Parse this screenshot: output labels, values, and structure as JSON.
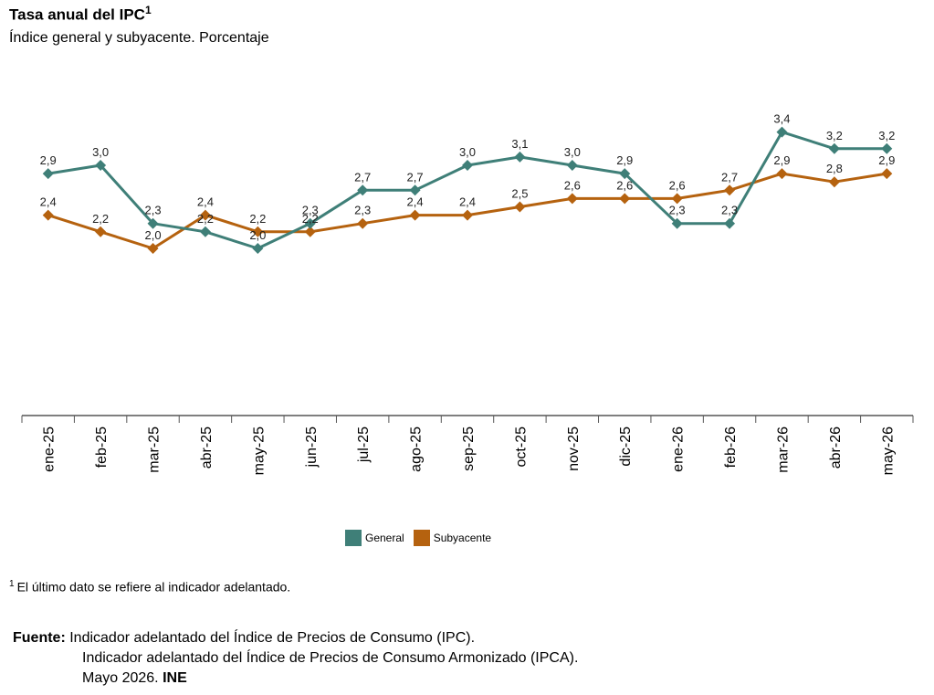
{
  "title": "Tasa anual del IPC",
  "title_sup": "1",
  "subtitle": "Índice general y subyacente. Porcentaje",
  "chart_data": {
    "type": "line",
    "categories": [
      "ene-25",
      "feb-25",
      "mar-25",
      "abr-25",
      "may-25",
      "jun-25",
      "jul-25",
      "ago-25",
      "sep-25",
      "oct-25",
      "nov-25",
      "dic-25",
      "ene-26",
      "feb-26",
      "mar-26",
      "abr-26",
      "may-26"
    ],
    "series": [
      {
        "name": "General",
        "color": "#3f7f78",
        "values": [
          2.9,
          3.0,
          2.3,
          2.2,
          2.0,
          2.3,
          2.7,
          2.7,
          3.0,
          3.1,
          3.0,
          2.9,
          2.3,
          2.3,
          3.4,
          3.2,
          3.2
        ],
        "labels": [
          "2,9",
          "3,0",
          "2,3",
          "2,2",
          "2,0",
          "2,3",
          "2,7",
          "2,7",
          "3,0",
          "3,1",
          "3,0",
          "2,9",
          "2,3",
          "2,3",
          "3,4",
          "3,2",
          "3,2"
        ]
      },
      {
        "name": "Subyacente",
        "color": "#b5620f",
        "values": [
          2.4,
          2.2,
          2.0,
          2.4,
          2.2,
          2.2,
          2.3,
          2.4,
          2.4,
          2.5,
          2.6,
          2.6,
          2.6,
          2.7,
          2.9,
          2.8,
          2.9
        ],
        "labels": [
          "2,4",
          "2,2",
          "2,0",
          "2,4",
          "2,2",
          "2,2",
          "2,3",
          "2,4",
          "2,4",
          "2,5",
          "2,6",
          "2,6",
          "2,6",
          "2,7",
          "2,9",
          "2,8",
          "2,9"
        ]
      }
    ],
    "legend_position": "bottom-center",
    "grid": false
  },
  "footnote": {
    "marker": "1",
    "text": "El último dato se refiere al indicador adelantado."
  },
  "source": {
    "label": "Fuente:",
    "line1": "Indicador adelantado del Índice de Precios de Consumo (IPC).",
    "line2": "Indicador adelantado del Índice de Precios de Consumo Armonizado (IPCA).",
    "line3": "Mayo 2026.",
    "org": "INE"
  }
}
